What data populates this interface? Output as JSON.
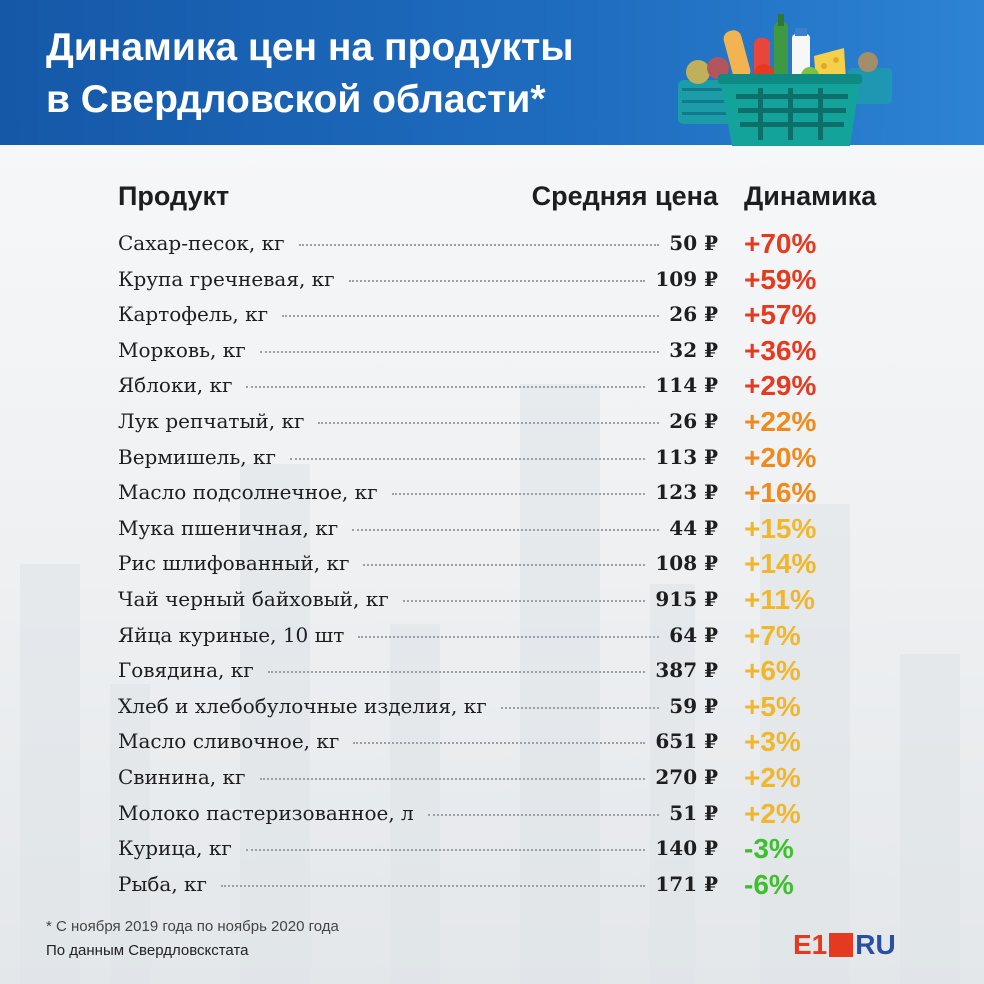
{
  "header": {
    "title_line1": "Динамика цен на продукты",
    "title_line2": "в Свердловской области*"
  },
  "colors": {
    "header_blue": "#1a63b5",
    "red": "#e53a1f",
    "orange": "#f08a1c",
    "yellow": "#f2b62a",
    "green": "#3fbf2f"
  },
  "chart_data": {
    "type": "table",
    "columns": [
      "Продукт",
      "Средняя цена",
      "Динамика"
    ],
    "rows": [
      {
        "product": "Сахар-песок, кг",
        "price": "50 ₽",
        "change": "+70%",
        "change_value": 70
      },
      {
        "product": "Крупа гречневая, кг",
        "price": "109 ₽",
        "change": "+59%",
        "change_value": 59
      },
      {
        "product": "Картофель, кг",
        "price": "26 ₽",
        "change": "+57%",
        "change_value": 57
      },
      {
        "product": "Морковь, кг",
        "price": "32 ₽",
        "change": "+36%",
        "change_value": 36
      },
      {
        "product": "Яблоки, кг",
        "price": "114 ₽",
        "change": "+29%",
        "change_value": 29
      },
      {
        "product": "Лук репчатый, кг",
        "price": "26 ₽",
        "change": "+22%",
        "change_value": 22
      },
      {
        "product": "Вермишель, кг",
        "price": "113 ₽",
        "change": "+20%",
        "change_value": 20
      },
      {
        "product": "Масло подсолнечное, кг",
        "price": "123 ₽",
        "change": "+16%",
        "change_value": 16
      },
      {
        "product": "Мука пшеничная, кг",
        "price": "44 ₽",
        "change": "+15%",
        "change_value": 15
      },
      {
        "product": "Рис шлифованный, кг",
        "price": "108 ₽",
        "change": "+14%",
        "change_value": 14
      },
      {
        "product": "Чай черный байховый, кг",
        "price": "915 ₽",
        "change": "+11%",
        "change_value": 11
      },
      {
        "product": "Яйца куриные, 10 шт",
        "price": "64 ₽",
        "change": "+7%",
        "change_value": 7
      },
      {
        "product": "Говядина, кг",
        "price": "387 ₽",
        "change": "+6%",
        "change_value": 6
      },
      {
        "product": "Хлеб и хлебобулочные изделия, кг",
        "price": "59 ₽",
        "change": "+5%",
        "change_value": 5
      },
      {
        "product": "Масло сливочное, кг",
        "price": "651 ₽",
        "change": "+3%",
        "change_value": 3
      },
      {
        "product": "Свинина, кг",
        "price": "270 ₽",
        "change": "+2%",
        "change_value": 2
      },
      {
        "product": "Молоко пастеризованное, л",
        "price": "51 ₽",
        "change": "+2%",
        "change_value": 2
      },
      {
        "product": "Курица, кг",
        "price": "140 ₽",
        "change": "-3%",
        "change_value": -3
      },
      {
        "product": "Рыба, кг",
        "price": "171 ₽",
        "change": "-6%",
        "change_value": -6
      }
    ]
  },
  "footer": {
    "note": "* С ноября 2019 года по ноябрь 2020 года",
    "source": "По данным Свердловскстата"
  },
  "logo": {
    "left": "E1",
    "right": "RU"
  }
}
